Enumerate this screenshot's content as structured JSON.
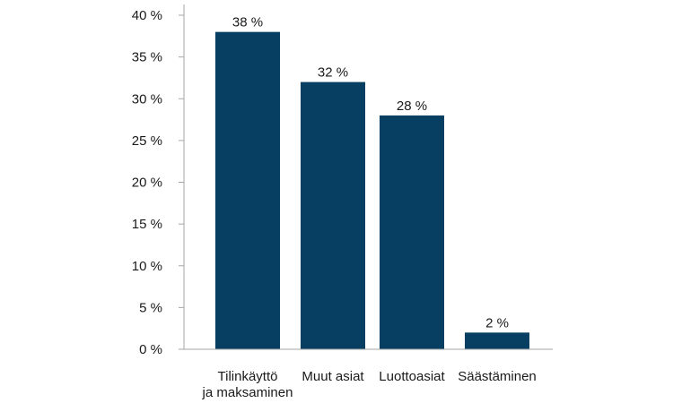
{
  "chart_data": {
    "type": "bar",
    "title": "",
    "xlabel": "",
    "ylabel": "",
    "categories": [
      [
        "Tilinkäyttö",
        "ja maksaminen"
      ],
      [
        "Muut asiat"
      ],
      [
        "Luottoasiat"
      ],
      [
        "Säästäminen"
      ]
    ],
    "values": [
      38,
      32,
      28,
      2
    ],
    "value_labels": [
      "38 %",
      "32 %",
      "28 %",
      "2 %"
    ],
    "ylim": [
      0,
      40
    ],
    "yticks": [
      0,
      5,
      10,
      15,
      20,
      25,
      30,
      35,
      40
    ],
    "ytick_labels": [
      "0 %",
      "5 %",
      "10 %",
      "15 %",
      "20 %",
      "25 %",
      "30 %",
      "35 %",
      "40 %"
    ],
    "grid": false,
    "legend": "none",
    "colors": {
      "bar": "#063f62",
      "axis": "#a6a6a6"
    }
  }
}
